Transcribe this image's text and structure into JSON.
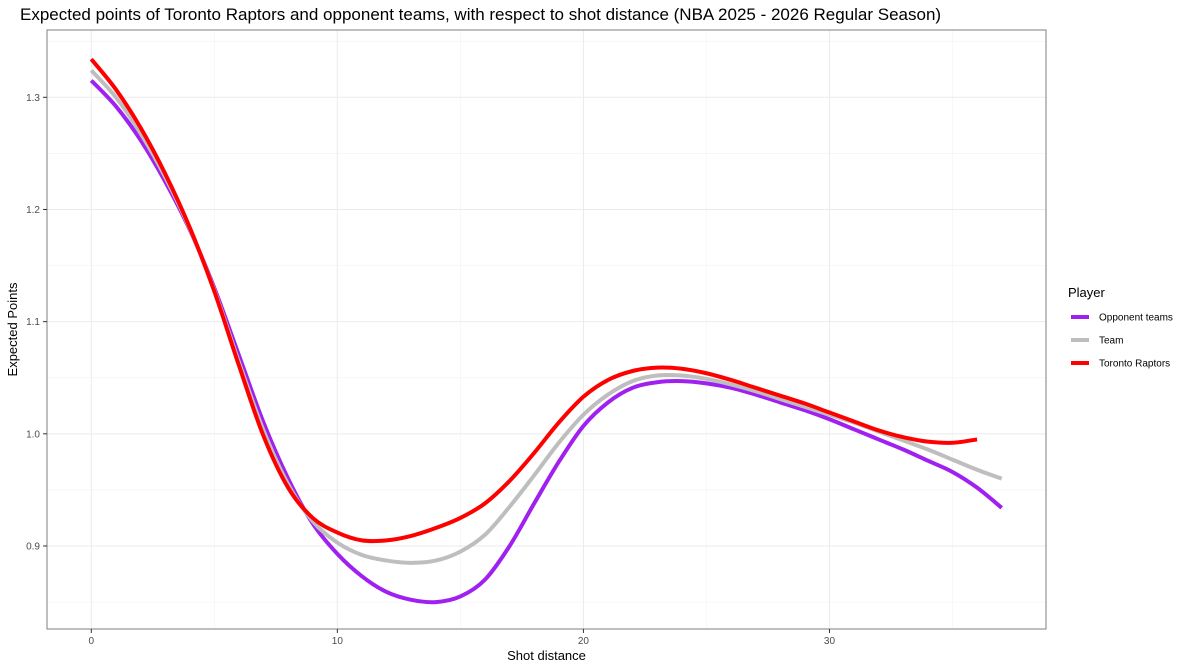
{
  "chart_data": {
    "type": "line",
    "title": "Expected points of Toronto Raptors and opponent teams, with respect to shot distance (NBA 2025 - 2026 Regular Season)",
    "xlabel": "Shot distance",
    "ylabel": "Expected Points",
    "xlim": [
      -1.8,
      38.8
    ],
    "ylim": [
      0.826,
      1.36
    ],
    "x_ticks": [
      0,
      10,
      20,
      30
    ],
    "x_tick_labels": [
      "0",
      "10",
      "20",
      "30"
    ],
    "y_ticks": [
      0.9,
      1.0,
      1.1,
      1.2,
      1.3
    ],
    "y_tick_labels": [
      "0.9",
      "1.0",
      "1.1",
      "1.2",
      "1.3"
    ],
    "grid": true,
    "legend": {
      "title": "Player",
      "position": "right"
    },
    "series": [
      {
        "name": "Opponent teams",
        "color": "#A020F0",
        "x": [
          0,
          1,
          2,
          3,
          4,
          5,
          6,
          7,
          8,
          9,
          10,
          11,
          12,
          13,
          14,
          15,
          16,
          17,
          18,
          19,
          20,
          21,
          22,
          23,
          24,
          25,
          26,
          27,
          28,
          29,
          30,
          31,
          32,
          33,
          34,
          35,
          36,
          37
        ],
        "y": [
          1.315,
          1.292,
          1.262,
          1.225,
          1.182,
          1.13,
          1.07,
          1.01,
          0.96,
          0.92,
          0.893,
          0.873,
          0.859,
          0.852,
          0.85,
          0.855,
          0.87,
          0.9,
          0.938,
          0.975,
          1.007,
          1.028,
          1.041,
          1.046,
          1.047,
          1.045,
          1.041,
          1.035,
          1.028,
          1.021,
          1.013,
          1.004,
          0.995,
          0.986,
          0.976,
          0.966,
          0.952,
          0.934
        ]
      },
      {
        "name": "Team",
        "color": "#BEBEBE",
        "x": [
          0,
          1,
          2,
          3,
          4,
          5,
          6,
          7,
          8,
          9,
          10,
          11,
          12,
          13,
          14,
          15,
          16,
          17,
          18,
          19,
          20,
          21,
          22,
          23,
          24,
          25,
          26,
          27,
          28,
          29,
          30,
          31,
          32,
          33,
          34,
          35,
          36,
          37
        ],
        "y": [
          1.324,
          1.3,
          1.268,
          1.229,
          1.183,
          1.128,
          1.064,
          1.003,
          0.955,
          0.922,
          0.903,
          0.892,
          0.887,
          0.885,
          0.887,
          0.895,
          0.91,
          0.935,
          0.963,
          0.992,
          1.017,
          1.035,
          1.047,
          1.052,
          1.052,
          1.049,
          1.044,
          1.038,
          1.031,
          1.024,
          1.017,
          1.01,
          1.002,
          0.994,
          0.986,
          0.977,
          0.968,
          0.96
        ]
      },
      {
        "name": "Toronto Raptors",
        "color": "#FF0000",
        "x": [
          0,
          1,
          2,
          3,
          4,
          5,
          6,
          7,
          8,
          9,
          10,
          11,
          12,
          13,
          14,
          15,
          16,
          17,
          18,
          19,
          20,
          21,
          22,
          23,
          24,
          25,
          26,
          27,
          28,
          29,
          30,
          31,
          32,
          33,
          34,
          35,
          36
        ],
        "y": [
          1.334,
          1.307,
          1.273,
          1.232,
          1.184,
          1.127,
          1.061,
          0.998,
          0.952,
          0.925,
          0.912,
          0.905,
          0.905,
          0.909,
          0.916,
          0.925,
          0.938,
          0.958,
          0.983,
          1.01,
          1.033,
          1.048,
          1.056,
          1.059,
          1.058,
          1.054,
          1.048,
          1.041,
          1.034,
          1.027,
          1.019,
          1.011,
          1.003,
          0.997,
          0.993,
          0.992,
          0.995
        ]
      }
    ]
  }
}
